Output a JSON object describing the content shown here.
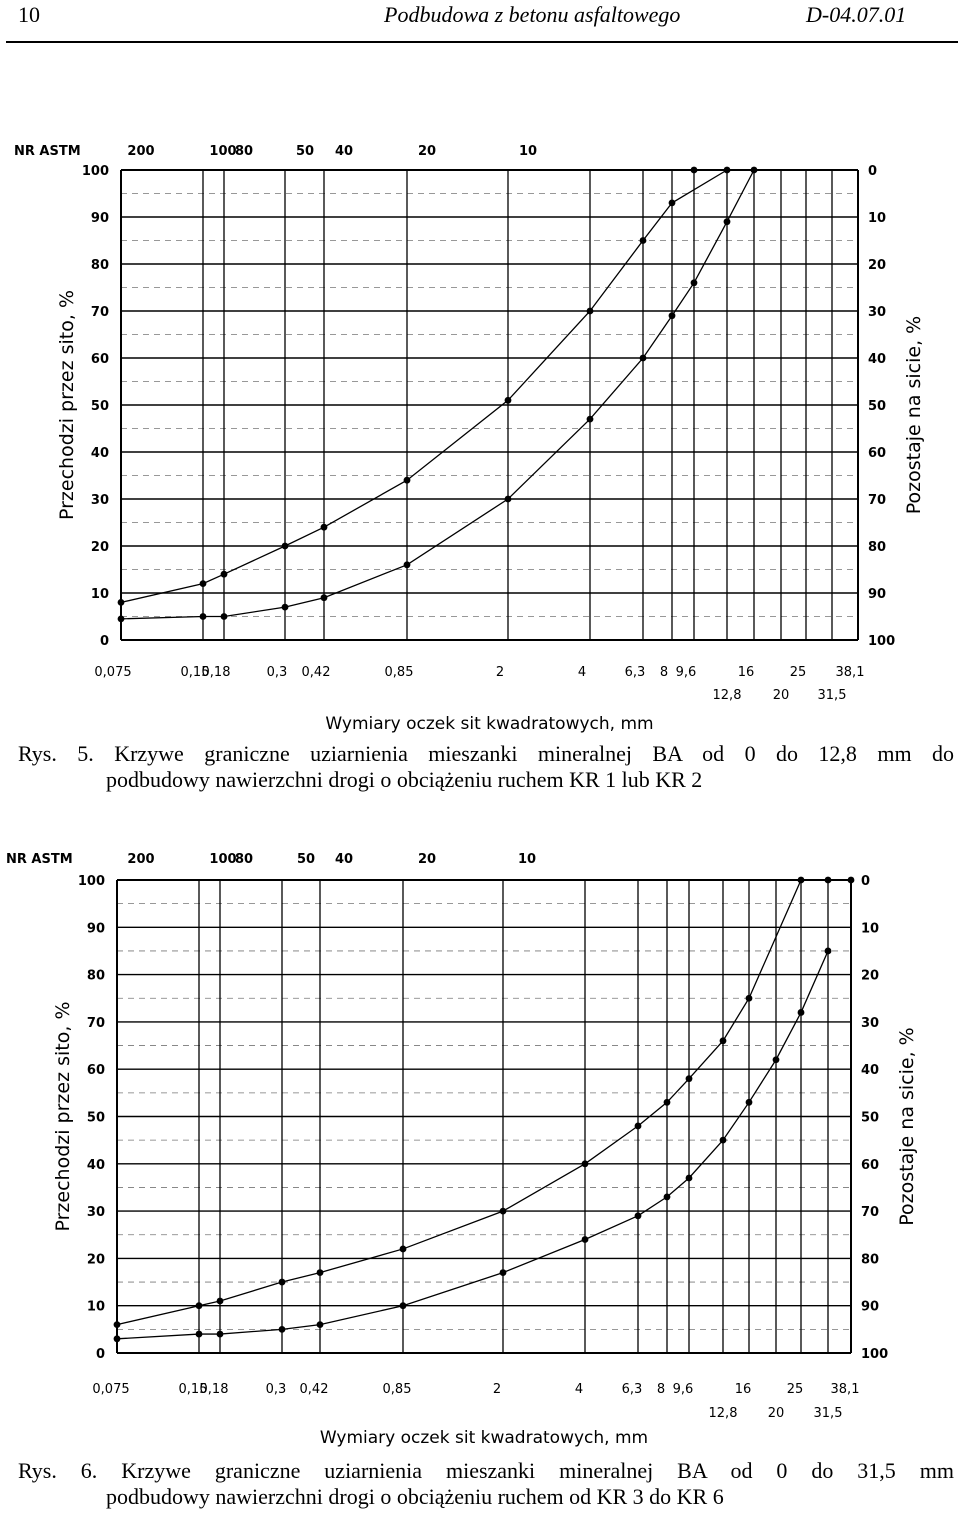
{
  "header": {
    "page_number": "10",
    "title": "Podbudowa z betonu asfaltowego",
    "code": "D-04.07.01"
  },
  "figure1": {
    "caption_line1": "Rys.  5. Krzywe graniczne uziarnienia mieszanki mineralnej BA od 0 do 12,8 mm do",
    "caption_line2": "podbudowy nawierzchni drogi o obciążeniu ruchem  KR 1 lub KR 2"
  },
  "figure2": {
    "caption_line1": "Rys.  6. Krzywe graniczne uziarnienia mieszanki mineralnej BA od 0 do 31,5 mm",
    "caption_line2": "podbudowy nawierzchni drogi o obciążeniu ruchem  od KR 3 do KR 6"
  },
  "chart_data": [
    {
      "type": "line",
      "astm_label": "NR ASTM",
      "astm_ticks": [
        {
          "label": "200",
          "sieve": "0,075"
        },
        {
          "label": "100",
          "sieve": "0,15"
        },
        {
          "label": "80",
          "sieve": "0,18"
        },
        {
          "label": "50",
          "sieve": "0,3"
        },
        {
          "label": "40",
          "sieve": "0,42"
        },
        {
          "label": "20",
          "sieve": "0,85"
        },
        {
          "label": "10",
          "sieve": "2"
        }
      ],
      "x_ticks_upper": [
        "0,075",
        "0,15",
        "0,18",
        "0,3",
        "0,42",
        "0,85",
        "2",
        "4",
        "6,3",
        "8",
        "9,6",
        "16",
        "25",
        "38,1"
      ],
      "x_ticks_lower": [
        "12,8",
        "20",
        "31,5"
      ],
      "xlabel": "Wymiary oczek sit kwadratowych, mm",
      "ylabel_left": "Przechodzi przez sito, %",
      "ylabel_right": "Pozostaje na sicie, %",
      "y_ticks_left": [
        "0",
        "10",
        "20",
        "30",
        "40",
        "50",
        "60",
        "70",
        "80",
        "90",
        "100"
      ],
      "y_ticks_right": [
        "100",
        "90",
        "80",
        "70",
        "60",
        "50",
        "40",
        "30",
        "20",
        "10",
        "0"
      ],
      "ylim": [
        0,
        100
      ],
      "grid": true,
      "series": [
        {
          "x": [
            0.075,
            0.15,
            0.18,
            0.3,
            0.42,
            0.85,
            2,
            4,
            6.3,
            8,
            12.8
          ],
          "y": [
            8,
            12,
            14,
            20,
            24,
            34,
            51,
            70,
            85,
            93,
            100
          ]
        },
        {
          "x": [
            0.075,
            0.15,
            0.18,
            0.3,
            0.42,
            0.85,
            2,
            4,
            6.3,
            8,
            9.6,
            12.8,
            16
          ],
          "y": [
            4.5,
            5,
            5,
            7,
            9,
            16,
            30,
            47,
            60,
            69,
            76,
            89,
            100
          ]
        }
      ],
      "top_points": [
        {
          "x": 9.6,
          "y": 100
        }
      ]
    },
    {
      "type": "line",
      "astm_label": "NR ASTM",
      "astm_ticks": [
        {
          "label": "200",
          "sieve": "0,075"
        },
        {
          "label": "100",
          "sieve": "0,15"
        },
        {
          "label": "80",
          "sieve": "0,18"
        },
        {
          "label": "50",
          "sieve": "0,3"
        },
        {
          "label": "40",
          "sieve": "0,42"
        },
        {
          "label": "20",
          "sieve": "0,85"
        },
        {
          "label": "10",
          "sieve": "2"
        }
      ],
      "x_ticks_upper": [
        "0,075",
        "0,15",
        "0,18",
        "0,3",
        "0,42",
        "0,85",
        "2",
        "4",
        "6,3",
        "8",
        "9,6",
        "16",
        "25",
        "38,1"
      ],
      "x_ticks_lower": [
        "12,8",
        "20",
        "31,5"
      ],
      "xlabel": "Wymiary oczek sit kwadratowych, mm",
      "ylabel_left": "Przechodzi przez sito, %",
      "ylabel_right": "Pozostaje na sicie, %",
      "y_ticks_left": [
        "0",
        "10",
        "20",
        "30",
        "40",
        "50",
        "60",
        "70",
        "80",
        "90",
        "100"
      ],
      "y_ticks_right": [
        "100",
        "90",
        "80",
        "70",
        "60",
        "50",
        "40",
        "30",
        "20",
        "10",
        "0"
      ],
      "ylim": [
        0,
        100
      ],
      "grid": true,
      "series": [
        {
          "x": [
            0.075,
            0.15,
            0.18,
            0.3,
            0.42,
            0.85,
            2,
            4,
            6.3,
            8,
            9.6,
            12.8,
            16,
            25
          ],
          "y": [
            6,
            10,
            11,
            15,
            17,
            22,
            30,
            40,
            48,
            53,
            58,
            66,
            75,
            100
          ]
        },
        {
          "x": [
            0.075,
            0.15,
            0.18,
            0.3,
            0.42,
            0.85,
            2,
            4,
            6.3,
            8,
            9.6,
            12.8,
            16,
            20,
            25,
            31.5
          ],
          "y": [
            3,
            4,
            4,
            5,
            6,
            10,
            17,
            24,
            29,
            33,
            37,
            45,
            53,
            62,
            72,
            85
          ]
        }
      ],
      "top_points": [
        {
          "x": 31.5,
          "y": 100
        },
        {
          "x": 38.1,
          "y": 100
        }
      ]
    }
  ]
}
